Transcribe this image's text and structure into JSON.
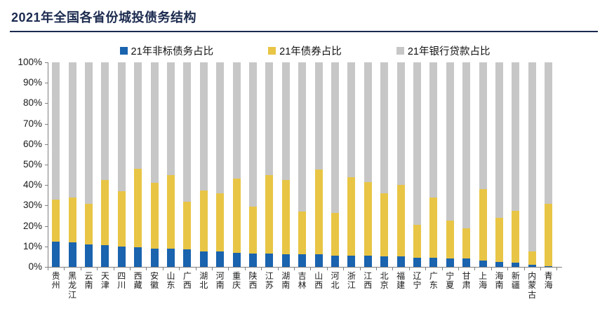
{
  "header": {
    "title": "2021年全国各省份城投债务结构"
  },
  "legend": {
    "items": [
      {
        "label": "21年非标债务占比",
        "color": "#1A63AE"
      },
      {
        "label": "21年债券占比",
        "color": "#E8C545"
      },
      {
        "label": "21年银行贷款占比",
        "color": "#C7C7C7"
      }
    ]
  },
  "y_axis": {
    "ticks": [
      "100%",
      "90%",
      "80%",
      "70%",
      "60%",
      "50%",
      "40%",
      "30%",
      "20%",
      "10%",
      "0%"
    ]
  },
  "chart_data": {
    "type": "bar",
    "stacked": true,
    "percent_stacked": true,
    "title": "2021年全国各省份城投债务结构",
    "xlabel": "",
    "ylabel": "",
    "ylim": [
      0,
      100
    ],
    "unit": "%",
    "grid": false,
    "legend_position": "top",
    "categories": [
      "贵州",
      "黑龙江",
      "云南",
      "天津",
      "四川",
      "西藏",
      "安徽",
      "山东",
      "广西",
      "湖北",
      "河南",
      "重庆",
      "陕西",
      "江苏",
      "湖南",
      "吉林",
      "山西",
      "河北",
      "浙江",
      "江西",
      "北京",
      "福建",
      "辽宁",
      "广东",
      "宁夏",
      "甘肃",
      "上海",
      "海南",
      "新疆",
      "内蒙古",
      "青海"
    ],
    "series": [
      {
        "name": "21年非标债务占比",
        "color": "#1A63AE",
        "values": [
          12.5,
          12,
          11,
          10.5,
          10,
          9.5,
          9,
          9,
          8.5,
          7.5,
          7.5,
          7,
          6.5,
          6.5,
          6,
          6,
          6,
          5.5,
          5.5,
          5.5,
          5,
          5,
          4.5,
          4.5,
          4,
          4,
          3,
          2.5,
          2,
          1,
          0.5
        ]
      },
      {
        "name": "21年债券占比",
        "color": "#E8C545",
        "values": [
          20.5,
          22,
          20,
          32,
          27,
          38.5,
          32,
          36,
          23.5,
          30,
          28.5,
          36,
          23,
          38.5,
          36.5,
          21,
          41.5,
          21,
          38.5,
          36,
          31,
          35,
          16,
          29.5,
          18.5,
          15,
          35,
          21.5,
          25.5,
          6.5,
          30.5
        ]
      },
      {
        "name": "21年银行贷款占比",
        "color": "#C7C7C7",
        "values": [
          67,
          66,
          69,
          57.5,
          63,
          52,
          59,
          55,
          68,
          62.5,
          64,
          57,
          70.5,
          55,
          57.5,
          73,
          52.5,
          73.5,
          56,
          58.5,
          64,
          60,
          79.5,
          66,
          77.5,
          81,
          62,
          76,
          72.5,
          92.5,
          69
        ]
      }
    ]
  }
}
